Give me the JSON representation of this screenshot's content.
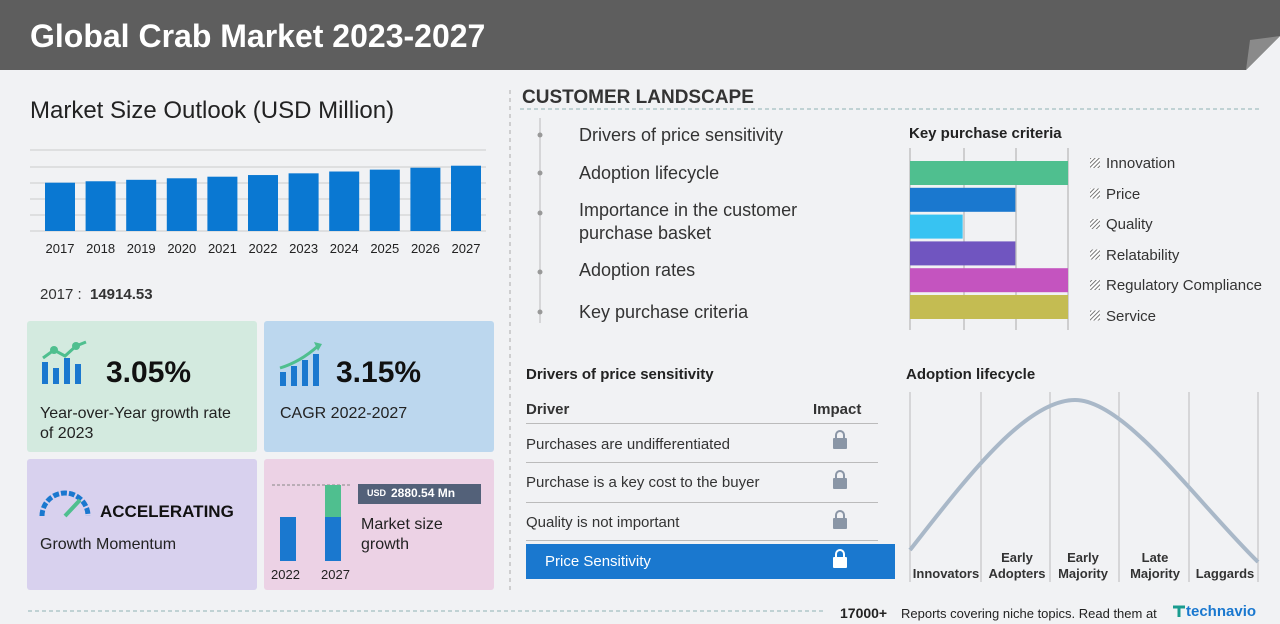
{
  "header": {
    "title": "Global Crab Market 2023-2027"
  },
  "market_size": {
    "title": "Market Size Outlook (USD Million)",
    "base_label": "2017 :",
    "chart_data": {
      "type": "bar",
      "categories": [
        "2017",
        "2018",
        "2019",
        "2020",
        "2021",
        "2022",
        "2023",
        "2024",
        "2025",
        "2026",
        "2027"
      ],
      "values": [
        14914.53,
        15350,
        15800,
        16270,
        16760,
        17270,
        17800,
        18360,
        18940,
        19530,
        20150
      ],
      "color": "#0a78d2",
      "ylim": [
        0,
        25000
      ]
    }
  },
  "stats": {
    "yoy": {
      "value": "3.05%",
      "label": "Year-over-Year growth rate of 2023"
    },
    "cagr": {
      "value": "3.15%",
      "label": "CAGR 2022-2027"
    },
    "momentum": {
      "value": "ACCELERATING",
      "label": "Growth Momentum"
    },
    "growth": {
      "currency": "USD",
      "value": "2880.54 Mn",
      "label": "Market size growth",
      "years": [
        "2022",
        "2027"
      ]
    }
  },
  "customer_landscape": {
    "title": "CUSTOMER LANDSCAPE",
    "items": [
      "Drivers of price sensitivity",
      "Adoption lifecycle",
      "Importance in the customer purchase basket",
      "Adoption rates",
      "Key purchase criteria"
    ]
  },
  "key_purchase_criteria": {
    "title": "Key purchase criteria",
    "chart_data": {
      "type": "bar",
      "orientation": "horizontal",
      "categories": [
        "Innovation",
        "Price",
        "Quality",
        "Relatability",
        "Regulatory Compliance",
        "Service"
      ],
      "values": [
        3,
        2,
        1,
        2,
        3,
        3
      ],
      "colors": [
        "#4fbf8f",
        "#1a78cf",
        "#37c3f2",
        "#7055c0",
        "#c454bf",
        "#c4bc52"
      ],
      "xlim": [
        0,
        3
      ]
    }
  },
  "drivers": {
    "title": "Drivers of price sensitivity",
    "columns": [
      "Driver",
      "Impact"
    ],
    "rows": [
      "Purchases are undifferentiated",
      "Purchase is a key cost to the buyer",
      "Quality is not important"
    ],
    "highlight": "Price Sensitivity"
  },
  "adoption": {
    "title": "Adoption lifecycle",
    "stages": [
      "Innovators",
      "Early Adopters",
      "Early Majority",
      "Late Majority",
      "Laggards"
    ]
  },
  "footer": {
    "count": "17000+",
    "text": "Reports covering niche topics. Read them at",
    "brand": "technavio"
  }
}
